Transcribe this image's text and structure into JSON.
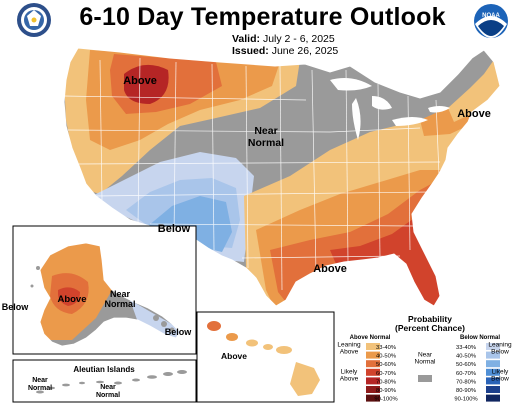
{
  "header": {
    "title": "6-10 Day Temperature Outlook",
    "valid_label": "Valid:",
    "valid_value": "July 2 - 6, 2025",
    "issued_label": "Issued:",
    "issued_value": "June 26, 2025",
    "left_logo": "doc-seal-icon",
    "right_logo": "noaa-logo-icon",
    "right_logo_text": "NOAA"
  },
  "map_labels": {
    "above_northwest": "Above",
    "near_normal_central": "Near\nNormal",
    "above_northeast": "Above",
    "below_southwest": "Below",
    "above_southeast": "Above",
    "alaska_above": "Above",
    "alaska_near_normal": "Near\nNormal",
    "alaska_below_east": "Below",
    "alaska_below_west": "Below",
    "hawaii_above": "Above",
    "aleutian_title": "Aleutian Islands",
    "aleutian_near_normal_left": "Near\nNormal",
    "aleutian_near_normal_right": "Near\nNormal"
  },
  "legend": {
    "title_line1": "Probability",
    "title_line2": "(Percent Chance)",
    "above_head": "Above Normal",
    "below_head": "Below Normal",
    "near_normal_label": "Near\nNormal",
    "leaning_above": "Leaning\nAbove",
    "likely_above": "Likely\nAbove",
    "leaning_below": "Leaning\nBelow",
    "likely_below": "Likely\nBelow",
    "above_bins": [
      {
        "label": "33-40%",
        "color": "#f2c27a"
      },
      {
        "label": "40-50%",
        "color": "#eb9a4b"
      },
      {
        "label": "50-60%",
        "color": "#e2703b"
      },
      {
        "label": "60-70%",
        "color": "#d1432c"
      },
      {
        "label": "70-80%",
        "color": "#b52525"
      },
      {
        "label": "80-90%",
        "color": "#8e1b1b"
      },
      {
        "label": "90-100%",
        "color": "#5c1010"
      }
    ],
    "below_bins": [
      {
        "label": "33-40%",
        "color": "#c7d5ee"
      },
      {
        "label": "40-50%",
        "color": "#a9c5ea"
      },
      {
        "label": "50-60%",
        "color": "#7fb0e3"
      },
      {
        "label": "60-70%",
        "color": "#4f8fd6"
      },
      {
        "label": "70-80%",
        "color": "#2a63b8"
      },
      {
        "label": "80-90%",
        "color": "#1b3f8c"
      },
      {
        "label": "90-100%",
        "color": "#102660"
      }
    ],
    "near_normal_color": "#9a9a9a"
  },
  "colors": {
    "near_normal": "#9a9a9a",
    "above_33_40": "#f2c27a",
    "above_40_50": "#eb9a4b",
    "above_50_60": "#e2703b",
    "above_60_70": "#d1432c",
    "above_70_80": "#b52525",
    "below_33_40": "#c7d5ee",
    "below_40_50": "#a9c5ea",
    "below_50_60": "#7fb0e3",
    "border": "#ffffff",
    "lake": "#ffffff"
  }
}
